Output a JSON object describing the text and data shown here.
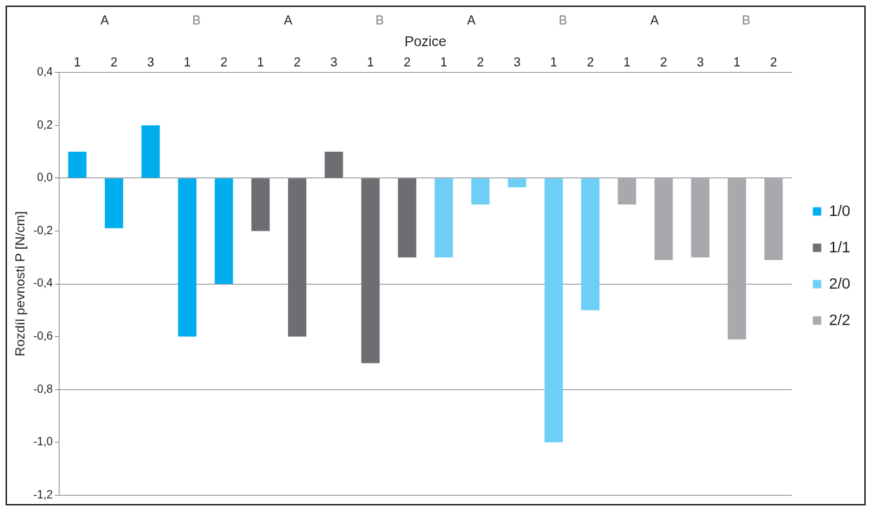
{
  "chart_data": {
    "type": "bar",
    "xlabel": "Pozice",
    "ylabel": "Rozdíl pevnosti P [N/cm]",
    "categories": [
      "1",
      "2",
      "3",
      "1",
      "2",
      "1",
      "2",
      "3",
      "1",
      "2",
      "1",
      "2",
      "3",
      "1",
      "2",
      "1",
      "2",
      "3",
      "1",
      "2"
    ],
    "series": [
      {
        "name": "1/0",
        "color": "#00aeef",
        "values": [
          0.1,
          -0.19,
          0.2,
          -0.6,
          -0.4,
          null,
          null,
          null,
          null,
          null,
          null,
          null,
          null,
          null,
          null,
          null,
          null,
          null,
          null,
          null
        ]
      },
      {
        "name": "1/1",
        "color": "#6d6e71",
        "values": [
          null,
          null,
          null,
          null,
          null,
          -0.2,
          -0.6,
          0.1,
          -0.7,
          -0.3,
          null,
          null,
          null,
          null,
          null,
          null,
          null,
          null,
          null,
          null
        ]
      },
      {
        "name": "2/0",
        "color": "#6dcff6",
        "values": [
          null,
          null,
          null,
          null,
          null,
          null,
          null,
          null,
          null,
          null,
          -0.3,
          -0.1,
          -0.035,
          -1.0,
          -0.5,
          null,
          null,
          null,
          null,
          null
        ]
      },
      {
        "name": "2/2",
        "color": "#a7a9ac",
        "values": [
          null,
          null,
          null,
          null,
          null,
          null,
          null,
          null,
          null,
          null,
          null,
          null,
          null,
          null,
          null,
          -0.1,
          -0.31,
          -0.3,
          -0.61,
          -0.31
        ]
      }
    ],
    "annotations": [
      "A",
      "B",
      "A",
      "B",
      "A",
      "B",
      "A",
      "B"
    ],
    "ylim": [
      -1.2,
      0.4
    ],
    "yticks": [
      {
        "value": -1.2,
        "label": "-1,2"
      },
      {
        "value": -1.0,
        "label": "-1,0"
      },
      {
        "value": -0.8,
        "label": "-0,8"
      },
      {
        "value": -0.6,
        "label": "-0,6"
      },
      {
        "value": -0.4,
        "label": "-0,4"
      },
      {
        "value": -0.2,
        "label": "-0,2"
      },
      {
        "value": 0,
        "label": "0,0"
      },
      {
        "value": 0.2,
        "label": "0,2"
      },
      {
        "value": 0.4,
        "label": "0,4"
      }
    ],
    "grid": "y",
    "legend": "right"
  }
}
